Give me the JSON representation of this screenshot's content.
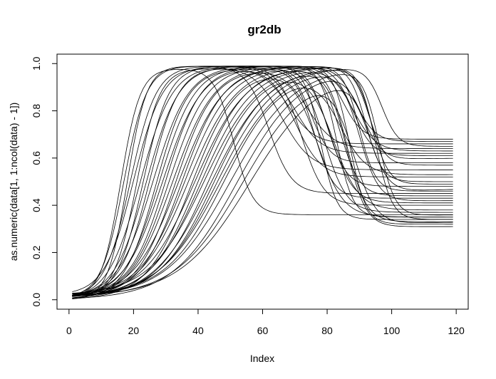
{
  "chart_data": {
    "type": "line",
    "title": "gr2db",
    "xlabel": "Index",
    "ylabel": "as.numeric(data[1, 1:ncol(data) - 1])",
    "xlim": [
      1,
      119
    ],
    "ylim": [
      0.0,
      1.0
    ],
    "x_ticks": [
      "0",
      "20",
      "40",
      "60",
      "80",
      "100",
      "120"
    ],
    "y_ticks": [
      "0.0",
      "0.2",
      "0.4",
      "0.6",
      "0.8",
      "1.0"
    ],
    "grid": false,
    "legend": "none",
    "x_range_note": "each series spans Index 1 to 119",
    "series_params": {
      "fields": [
        "rise_midpoint_index",
        "rise_width",
        "peak",
        "fall_midpoint_index",
        "fall_width",
        "plateau_level",
        "start_level"
      ],
      "values": [
        [
          16,
          3.0,
          0.98,
          51,
          3.0,
          0.36,
          0.01
        ],
        [
          17,
          3.5,
          0.99,
          70,
          4.0,
          0.62,
          0.01
        ],
        [
          18,
          3.0,
          0.99,
          62,
          3.5,
          0.45,
          0.0
        ],
        [
          19,
          4.0,
          0.99,
          75,
          3.0,
          0.58,
          0.01
        ],
        [
          20,
          4.5,
          0.99,
          78,
          2.5,
          0.34,
          0.02
        ],
        [
          21,
          3.5,
          0.98,
          68,
          4.0,
          0.66,
          0.01
        ],
        [
          22,
          5.0,
          0.99,
          80,
          3.0,
          0.48,
          0.0
        ],
        [
          23,
          4.0,
          0.99,
          72,
          3.5,
          0.4,
          0.01
        ],
        [
          24,
          5.0,
          0.99,
          83,
          2.5,
          0.35,
          0.01
        ],
        [
          25,
          4.5,
          0.99,
          66,
          4.5,
          0.55,
          0.02
        ],
        [
          26,
          5.5,
          0.99,
          85,
          3.0,
          0.68,
          0.01
        ],
        [
          27,
          5.0,
          0.98,
          76,
          3.0,
          0.43,
          0.0
        ],
        [
          28,
          5.5,
          0.99,
          87,
          2.5,
          0.32,
          0.01
        ],
        [
          29,
          6.0,
          0.99,
          70,
          4.0,
          0.52,
          0.01
        ],
        [
          30,
          5.5,
          0.99,
          88,
          3.0,
          0.61,
          0.02
        ],
        [
          31,
          6.0,
          0.99,
          79,
          3.5,
          0.37,
          0.01
        ],
        [
          32,
          6.5,
          0.99,
          90,
          2.5,
          0.46,
          0.0
        ],
        [
          33,
          6.0,
          0.98,
          74,
          4.0,
          0.64,
          0.01
        ],
        [
          34,
          7.0,
          0.99,
          86,
          3.0,
          0.33,
          0.01
        ],
        [
          35,
          6.5,
          0.99,
          92,
          2.5,
          0.5,
          0.01
        ],
        [
          36,
          7.0,
          0.99,
          81,
          3.5,
          0.41,
          0.02
        ],
        [
          37,
          7.5,
          0.99,
          89,
          3.0,
          0.67,
          0.01
        ],
        [
          38,
          7.0,
          0.98,
          77,
          4.0,
          0.35,
          0.0
        ],
        [
          39,
          8.0,
          0.99,
          93,
          2.5,
          0.57,
          0.01
        ],
        [
          40,
          7.5,
          0.99,
          84,
          3.0,
          0.44,
          0.01
        ],
        [
          41,
          8.0,
          0.99,
          95,
          2.5,
          0.34,
          0.01
        ],
        [
          42,
          8.5,
          0.99,
          88,
          3.5,
          0.63,
          0.02
        ],
        [
          43,
          8.0,
          0.98,
          82,
          4.0,
          0.38,
          0.01
        ],
        [
          44,
          9.0,
          0.99,
          94,
          2.5,
          0.49,
          0.0
        ],
        [
          45,
          8.5,
          0.99,
          86,
          3.0,
          0.31,
          0.01
        ],
        [
          46,
          9.0,
          0.99,
          97,
          2.5,
          0.65,
          0.01
        ],
        [
          47,
          9.5,
          0.99,
          90,
          3.0,
          0.42,
          0.01
        ],
        [
          48,
          9.0,
          0.98,
          84,
          4.0,
          0.53,
          0.02
        ],
        [
          50,
          10.0,
          0.99,
          96,
          2.5,
          0.36,
          0.01
        ],
        [
          52,
          10.0,
          0.99,
          91,
          3.0,
          0.6,
          0.0
        ],
        [
          54,
          10.5,
          0.99,
          88,
          3.5,
          0.33,
          0.01
        ],
        [
          56,
          11.0,
          0.98,
          93,
          3.0,
          0.47,
          0.01
        ]
      ]
    }
  }
}
